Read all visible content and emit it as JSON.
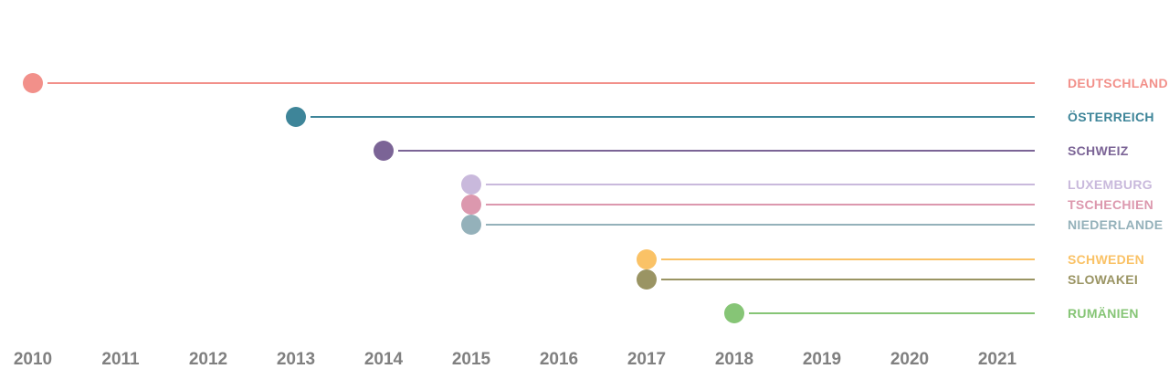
{
  "chart_data": {
    "type": "timeline",
    "title": "",
    "xlabel": "",
    "ylabel": "",
    "grid": false,
    "legend": "none",
    "x_ticks": [
      "2010",
      "2011",
      "2012",
      "2013",
      "2014",
      "2015",
      "2016",
      "2017",
      "2018",
      "2019",
      "2020",
      "2021"
    ],
    "series": [
      {
        "name": "DEUTSCHLAND",
        "start_year": 2010,
        "color": "#f2908a"
      },
      {
        "name": "ÖSTERREICH",
        "start_year": 2013,
        "color": "#3e8599"
      },
      {
        "name": "SCHWEIZ",
        "start_year": 2014,
        "color": "#7b6496"
      },
      {
        "name": "LUXEMBURG",
        "start_year": 2015,
        "color": "#c9b9dc"
      },
      {
        "name": "TSCHECHIEN",
        "start_year": 2015,
        "color": "#dc98ae"
      },
      {
        "name": "NIEDERLANDE",
        "start_year": 2015,
        "color": "#94b1ba"
      },
      {
        "name": "SCHWEDEN",
        "start_year": 2017,
        "color": "#fac266"
      },
      {
        "name": "SLOWAKEI",
        "start_year": 2017,
        "color": "#9a9463"
      },
      {
        "name": "RUMÄNIEN",
        "start_year": 2018,
        "color": "#86c576"
      }
    ]
  }
}
